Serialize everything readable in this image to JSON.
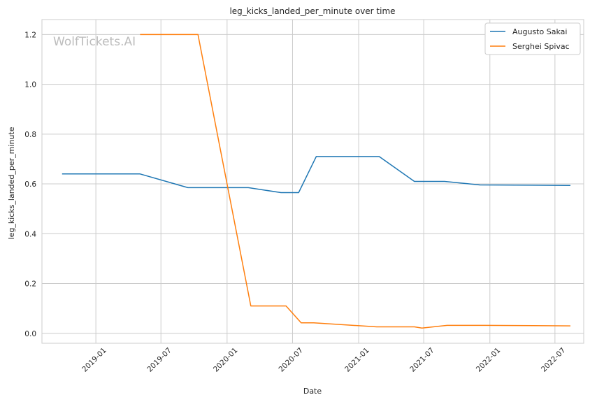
{
  "chart_data": {
    "type": "line",
    "title": "leg_kicks_landed_per_minute over time",
    "xlabel": "Date",
    "ylabel": "leg_kicks_landed_per_minute",
    "watermark": "WolfTickets.AI",
    "grid": true,
    "legend_position": "top-right",
    "xlim": [
      "2018-08-04",
      "2022-09-19"
    ],
    "ylim": [
      -0.04,
      1.26
    ],
    "x_ticks": [
      "2019-01",
      "2019-07",
      "2020-01",
      "2020-07",
      "2021-01",
      "2021-07",
      "2022-01",
      "2022-07"
    ],
    "y_ticks": [
      "0.0",
      "0.2",
      "0.4",
      "0.6",
      "0.8",
      "1.0",
      "1.2"
    ],
    "series": [
      {
        "name": "Augusto Sakai",
        "color": "#1f77b4",
        "points": [
          [
            "2018-09-29",
            0.64
          ],
          [
            "2019-05-04",
            0.64
          ],
          [
            "2019-09-14",
            0.585
          ],
          [
            "2020-02-29",
            0.585
          ],
          [
            "2020-05-30",
            0.565
          ],
          [
            "2020-07-18",
            0.565
          ],
          [
            "2020-09-05",
            0.71
          ],
          [
            "2021-02-27",
            0.71
          ],
          [
            "2021-06-05",
            0.61
          ],
          [
            "2021-08-28",
            0.61
          ],
          [
            "2021-12-04",
            0.596
          ],
          [
            "2022-08-13",
            0.594
          ]
        ]
      },
      {
        "name": "Serghei Spivac",
        "color": "#ff7f0e",
        "points": [
          [
            "2019-05-04",
            1.2
          ],
          [
            "2019-10-12",
            1.2
          ],
          [
            "2020-03-07",
            0.11
          ],
          [
            "2020-06-13",
            0.11
          ],
          [
            "2020-07-25",
            0.042
          ],
          [
            "2020-08-29",
            0.042
          ],
          [
            "2021-02-20",
            0.026
          ],
          [
            "2021-06-05",
            0.026
          ],
          [
            "2021-06-26",
            0.021
          ],
          [
            "2021-09-04",
            0.032
          ],
          [
            "2021-12-18",
            0.032
          ],
          [
            "2022-08-13",
            0.03
          ]
        ]
      }
    ]
  }
}
